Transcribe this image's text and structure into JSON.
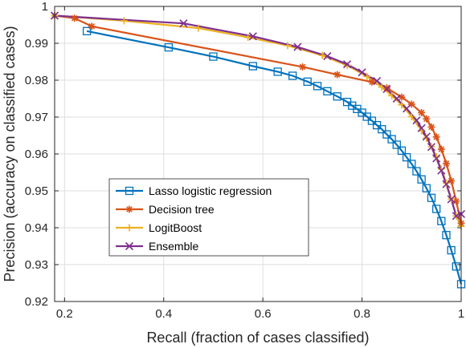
{
  "chart_data": {
    "type": "line",
    "xlabel": "Recall (fraction of cases classified)",
    "ylabel": "Precision (accuracy on classified cases)",
    "xlim": [
      0.18,
      1.0
    ],
    "ylim": [
      0.92,
      1.0
    ],
    "xticks": [
      0.2,
      0.4,
      0.6,
      0.8,
      1
    ],
    "xtick_labels": [
      "0.2",
      "0.4",
      "0.6",
      "0.8",
      "1"
    ],
    "yticks": [
      0.92,
      0.93,
      0.94,
      0.95,
      0.96,
      0.97,
      0.98,
      0.99,
      1
    ],
    "ytick_labels": [
      "0.92",
      "0.93",
      "0.94",
      "0.95",
      "0.96",
      "0.97",
      "0.98",
      "0.99",
      "1"
    ],
    "grid": true,
    "legend_position": "lower-left",
    "series": [
      {
        "name": "Lasso logistic regression",
        "color": "#0072BD",
        "marker": "square",
        "x": [
          0.245,
          0.41,
          0.5,
          0.58,
          0.63,
          0.66,
          0.69,
          0.71,
          0.73,
          0.75,
          0.77,
          0.78,
          0.79,
          0.8,
          0.81,
          0.82,
          0.83,
          0.84,
          0.85,
          0.86,
          0.87,
          0.88,
          0.89,
          0.9,
          0.91,
          0.92,
          0.93,
          0.94,
          0.95,
          0.96,
          0.97,
          0.98,
          0.99,
          1.0
        ],
        "y": [
          0.9933,
          0.9889,
          0.9864,
          0.9838,
          0.9823,
          0.9812,
          0.9796,
          0.9784,
          0.977,
          0.9756,
          0.9741,
          0.9731,
          0.9722,
          0.9712,
          0.9701,
          0.969,
          0.9678,
          0.9667,
          0.9653,
          0.964,
          0.9625,
          0.9609,
          0.9591,
          0.9573,
          0.9553,
          0.9531,
          0.9507,
          0.9481,
          0.9451,
          0.9418,
          0.938,
          0.9339,
          0.9295,
          0.9247
        ]
      },
      {
        "name": "Decision tree",
        "color": "#D95319",
        "marker": "asterisk",
        "x": [
          0.18,
          0.22,
          0.255,
          0.68,
          0.75,
          0.82,
          0.85,
          0.88,
          0.9,
          0.92,
          0.93,
          0.94,
          0.95,
          0.96,
          0.97,
          0.98,
          0.99,
          1.0
        ],
        "y": [
          0.9975,
          0.9968,
          0.9946,
          0.9836,
          0.9815,
          0.9795,
          0.9779,
          0.9754,
          0.9735,
          0.9712,
          0.9695,
          0.9673,
          0.9646,
          0.9613,
          0.9574,
          0.9527,
          0.9472,
          0.9412
        ]
      },
      {
        "name": "LogitBoost",
        "color": "#EDB120",
        "marker": "plus",
        "x": [
          0.18,
          0.32,
          0.47,
          0.57,
          0.65,
          0.72,
          0.77,
          0.81,
          0.84,
          0.86,
          0.88,
          0.9,
          0.92,
          0.93,
          0.94,
          0.95,
          0.96,
          0.97,
          0.98,
          0.99,
          1.0
        ],
        "y": [
          0.9975,
          0.9961,
          0.9941,
          0.9916,
          0.9894,
          0.9867,
          0.984,
          0.981,
          0.9781,
          0.9758,
          0.9733,
          0.9701,
          0.9663,
          0.9643,
          0.962,
          0.9592,
          0.9559,
          0.9521,
          0.9478,
          0.9432,
          0.9404
        ]
      },
      {
        "name": "Ensemble",
        "color": "#7E2F8E",
        "marker": "cross",
        "x": [
          0.18,
          0.44,
          0.58,
          0.67,
          0.73,
          0.77,
          0.8,
          0.83,
          0.85,
          0.87,
          0.89,
          0.91,
          0.92,
          0.93,
          0.94,
          0.95,
          0.96,
          0.97,
          0.98,
          0.99,
          1.0
        ],
        "y": [
          0.9975,
          0.9954,
          0.9919,
          0.989,
          0.9865,
          0.9843,
          0.9821,
          0.9798,
          0.9776,
          0.975,
          0.9723,
          0.9691,
          0.967,
          0.9647,
          0.9619,
          0.9588,
          0.9555,
          0.9518,
          0.9477,
          0.9432,
          0.9437
        ]
      }
    ]
  }
}
